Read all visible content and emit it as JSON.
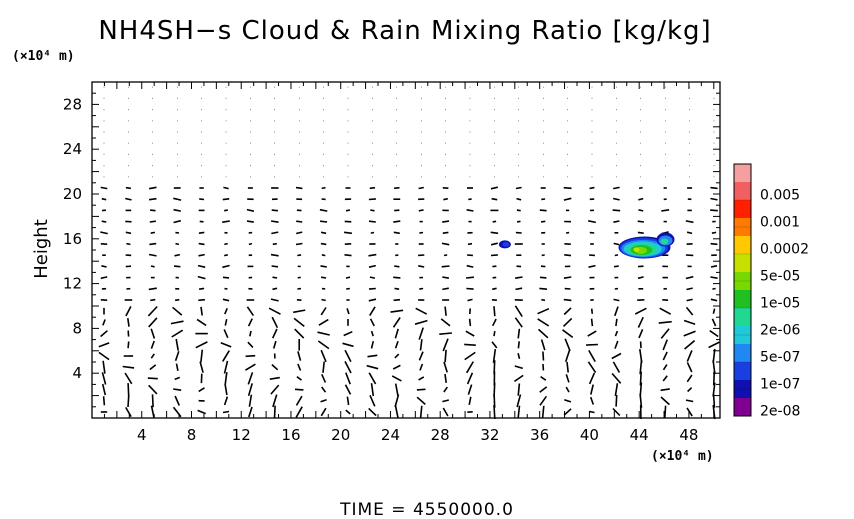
{
  "chart_data": {
    "type": "contour-vector",
    "title": "NH4SH−s Cloud & Rain Mixing Ratio [kg/kg]",
    "xunit": "(×10⁴ m)",
    "yunit": "(×10⁴ m)",
    "ylabel": "Height",
    "xlim": [
      0,
      50.5
    ],
    "ylim": [
      0,
      30
    ],
    "xticks": [
      4,
      8,
      12,
      16,
      20,
      24,
      28,
      32,
      36,
      40,
      44,
      48
    ],
    "yticks": [
      4,
      8,
      12,
      16,
      20,
      24,
      28
    ],
    "colorbar": {
      "labels": [
        "0.005",
        "0.001",
        "0.0002",
        "5e-05",
        "1e-05",
        "2e-06",
        "5e-07",
        "1e-07",
        "2e-08"
      ],
      "colors": [
        "#f4a0a0",
        "#f06060",
        "#ff2000",
        "#ff7a00",
        "#ffc800",
        "#c8e000",
        "#78d800",
        "#20c020",
        "#20d890",
        "#20c8d8",
        "#2088f0",
        "#1840e0",
        "#1010b0",
        "#800090"
      ]
    },
    "time_label": "TIME  =  4550000.0",
    "features": [
      {
        "name": "small cloud",
        "x": 33.2,
        "y": 15.5,
        "max_level": "1e-07"
      },
      {
        "name": "main cloud",
        "x_range": [
          42.5,
          47.0
        ],
        "y_range": [
          13.9,
          16.9
        ],
        "max_level": "5e-05"
      }
    ]
  }
}
